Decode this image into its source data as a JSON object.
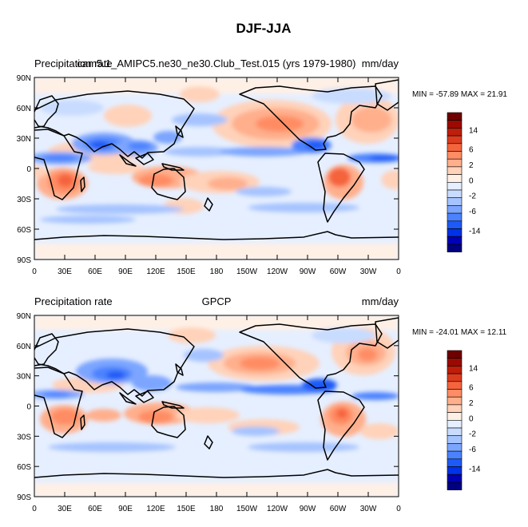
{
  "figure": {
    "title": "DJF-JJA"
  },
  "colors": {
    "levels": [
      "#000080",
      "#0000b4",
      "#0032e6",
      "#1e5af5",
      "#4b82ff",
      "#7ca5ff",
      "#a5c3ff",
      "#c8dcff",
      "#e6efff",
      "#fff0e6",
      "#ffd2b9",
      "#ffaf8c",
      "#ff8c64",
      "#f5643c",
      "#dc3c1e",
      "#be1e0a",
      "#9b0a00",
      "#6e0000"
    ],
    "land_outline": "#000000"
  },
  "chart_data": [
    {
      "type": "heatmap",
      "title_left": "Precipitation rate",
      "title_center": "cam5.1_AMIPC5.ne30_ne30.Club_Test.015 (yrs 1979-1980)",
      "title_right": "mm/day",
      "stats": "MIN = -57.89 MAX =  21.91",
      "xticks": [
        "0",
        "30E",
        "60E",
        "90E",
        "120E",
        "150E",
        "180",
        "150W",
        "120W",
        "90W",
        "60W",
        "30W",
        "0"
      ],
      "yticks": [
        "90N",
        "60N",
        "30N",
        "0",
        "30S",
        "60S",
        "90S"
      ],
      "colorbar_labels": [
        "14",
        "6",
        "2",
        "0",
        "-2",
        "-6",
        "-14"
      ],
      "colorbar_levels": [
        -18,
        -16,
        -14,
        -12,
        -10,
        -8,
        -6,
        -4,
        -2,
        0,
        2,
        4,
        6,
        8,
        10,
        12,
        14,
        16
      ],
      "xlim": [
        0,
        360
      ],
      "ylim": [
        -90,
        90
      ]
    },
    {
      "type": "heatmap",
      "title_left": "Precipitation rate",
      "title_center": "GPCP",
      "title_right": "mm/day",
      "stats": "MIN = -24.01 MAX =  12.11",
      "xticks": [
        "0",
        "30E",
        "60E",
        "90E",
        "120E",
        "150E",
        "180",
        "150W",
        "120W",
        "90W",
        "60W",
        "30W",
        "0"
      ],
      "yticks": [
        "90N",
        "60N",
        "30N",
        "0",
        "30S",
        "60S",
        "90S"
      ],
      "colorbar_labels": [
        "14",
        "6",
        "2",
        "0",
        "-2",
        "-6",
        "-14"
      ],
      "colorbar_levels": [
        -18,
        -16,
        -14,
        -12,
        -10,
        -8,
        -6,
        -4,
        -2,
        0,
        2,
        4,
        6,
        8,
        10,
        12,
        14,
        16
      ],
      "xlim": [
        0,
        360
      ],
      "ylim": [
        -90,
        90
      ]
    }
  ]
}
